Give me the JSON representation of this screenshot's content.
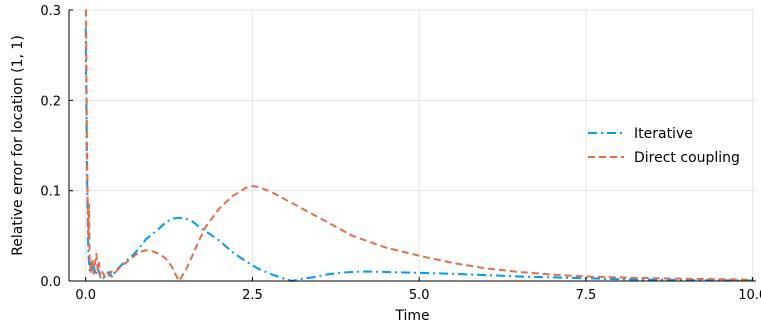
{
  "chart_data": {
    "type": "line",
    "xlabel": "Time",
    "ylabel": "Relative error for location (1, 1)",
    "xlim": [
      -0.25,
      10.05
    ],
    "ylim": [
      0,
      0.3
    ],
    "xticks": [
      0,
      2.5,
      5,
      7.5,
      10
    ],
    "xtick_labels": [
      "0.0",
      "2.5",
      "5.0",
      "7.5",
      "10.0"
    ],
    "yticks": [
      0,
      0.1,
      0.2,
      0.3
    ],
    "ytick_labels": [
      "0.0",
      "0.1",
      "0.2",
      "0.3"
    ],
    "grid": true,
    "legend_position": "right",
    "series": [
      {
        "name": "Iterative",
        "color": "#009af9",
        "dash": "dashdot",
        "x": [
          0,
          0.01,
          0.02,
          0.03,
          0.04,
          0.06,
          0.08,
          0.1,
          0.12,
          0.15,
          0.18,
          0.22,
          0.26,
          0.3,
          0.35,
          0.4,
          0.45,
          0.5,
          0.6,
          0.7,
          0.8,
          0.9,
          1.0,
          1.1,
          1.2,
          1.3,
          1.4,
          1.5,
          1.6,
          1.7,
          1.8,
          2.0,
          2.2,
          2.4,
          2.6,
          2.8,
          3.0,
          3.1,
          3.2,
          3.4,
          3.6,
          3.8,
          4.0,
          4.2,
          4.5,
          5.0,
          5.5,
          6.0,
          6.5,
          7.0,
          7.5,
          8.0,
          8.5,
          9.0,
          9.5,
          10.0
        ],
        "y": [
          0.28,
          0.2,
          0.12,
          0.07,
          0.03,
          0.012,
          0.02,
          0.01,
          0.018,
          0.006,
          0.015,
          0.005,
          0.003,
          0.006,
          0.01,
          0.004,
          0.012,
          0.015,
          0.022,
          0.028,
          0.036,
          0.046,
          0.052,
          0.058,
          0.065,
          0.069,
          0.07,
          0.069,
          0.066,
          0.06,
          0.055,
          0.045,
          0.032,
          0.022,
          0.013,
          0.007,
          0.002,
          0.0,
          0.002,
          0.004,
          0.007,
          0.009,
          0.01,
          0.0105,
          0.01,
          0.009,
          0.008,
          0.0065,
          0.005,
          0.004,
          0.003,
          0.002,
          0.0015,
          0.001,
          0.0008,
          0.0005
        ]
      },
      {
        "name": "Direct coupling",
        "color": "#e26f46",
        "dash": "dashed",
        "x": [
          0,
          0.005,
          0.01,
          0.02,
          0.03,
          0.04,
          0.05,
          0.06,
          0.08,
          0.1,
          0.12,
          0.14,
          0.16,
          0.18,
          0.2,
          0.22,
          0.25,
          0.3,
          0.35,
          0.4,
          0.45,
          0.5,
          0.6,
          0.7,
          0.8,
          0.9,
          1.0,
          1.1,
          1.2,
          1.3,
          1.35,
          1.4,
          1.5,
          1.6,
          1.7,
          1.8,
          2.0,
          2.2,
          2.4,
          2.5,
          2.6,
          2.8,
          3.0,
          3.5,
          4.0,
          4.5,
          5.0,
          5.5,
          6.0,
          6.5,
          7.0,
          7.5,
          8.0,
          8.5,
          9.0,
          9.5,
          10.0
        ],
        "y": [
          0.3,
          0.3,
          0.25,
          0.15,
          0.09,
          0.05,
          0.085,
          0.02,
          0.01,
          0.025,
          0.008,
          0.02,
          0.03,
          0.012,
          0.02,
          0.004,
          0.01,
          0.003,
          0.006,
          0.012,
          0.01,
          0.014,
          0.02,
          0.026,
          0.032,
          0.034,
          0.033,
          0.03,
          0.025,
          0.015,
          0.007,
          0.0,
          0.012,
          0.028,
          0.045,
          0.06,
          0.08,
          0.094,
          0.103,
          0.105,
          0.104,
          0.098,
          0.09,
          0.07,
          0.05,
          0.037,
          0.028,
          0.02,
          0.014,
          0.01,
          0.007,
          0.005,
          0.004,
          0.003,
          0.0025,
          0.002,
          0.0015
        ]
      }
    ]
  }
}
